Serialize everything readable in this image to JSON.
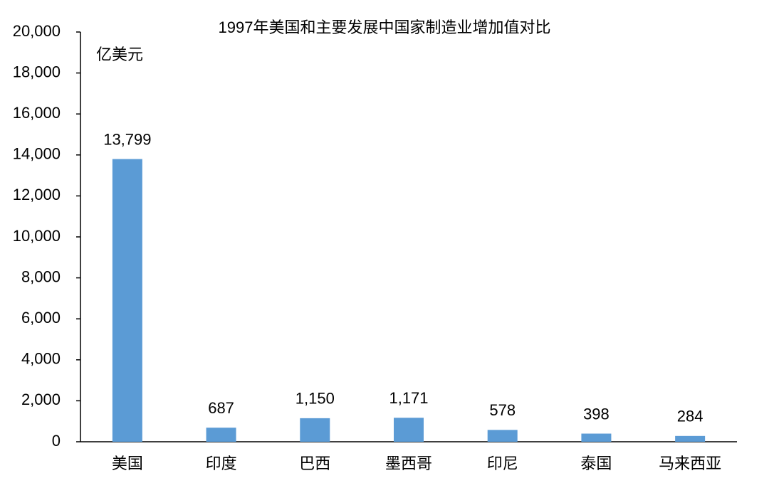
{
  "chart_data": {
    "type": "bar",
    "title": "1997年美国和主要发展中国家制造业增加值对比",
    "y_label": "亿美元",
    "categories": [
      "美国",
      "印度",
      "巴西",
      "墨西哥",
      "印尼",
      "泰国",
      "马来西亚"
    ],
    "values": [
      13799,
      687,
      1150,
      1171,
      578,
      398,
      284
    ],
    "value_labels": [
      "13,799",
      "687",
      "1,150",
      "1,171",
      "578",
      "398",
      "284"
    ],
    "color": "#5b9bd5",
    "ylim": [
      0,
      20000
    ],
    "yticks": [
      0,
      {
        "value": 2000,
        "label": "2,000"
      },
      {
        "value": 4000,
        "label": "4,000"
      },
      {
        "value": 6000,
        "label": "6,000"
      },
      {
        "value": 8000,
        "label": "8,000"
      },
      {
        "value": 10000,
        "label": "10,000"
      },
      {
        "value": 12000,
        "label": "12,000"
      },
      {
        "value": 14000,
        "label": "14,000"
      },
      {
        "value": 16000,
        "label": "16,000"
      },
      {
        "value": 18000,
        "label": "18,000"
      },
      {
        "value": 20000,
        "label": "20,000"
      }
    ],
    "grid": false
  }
}
